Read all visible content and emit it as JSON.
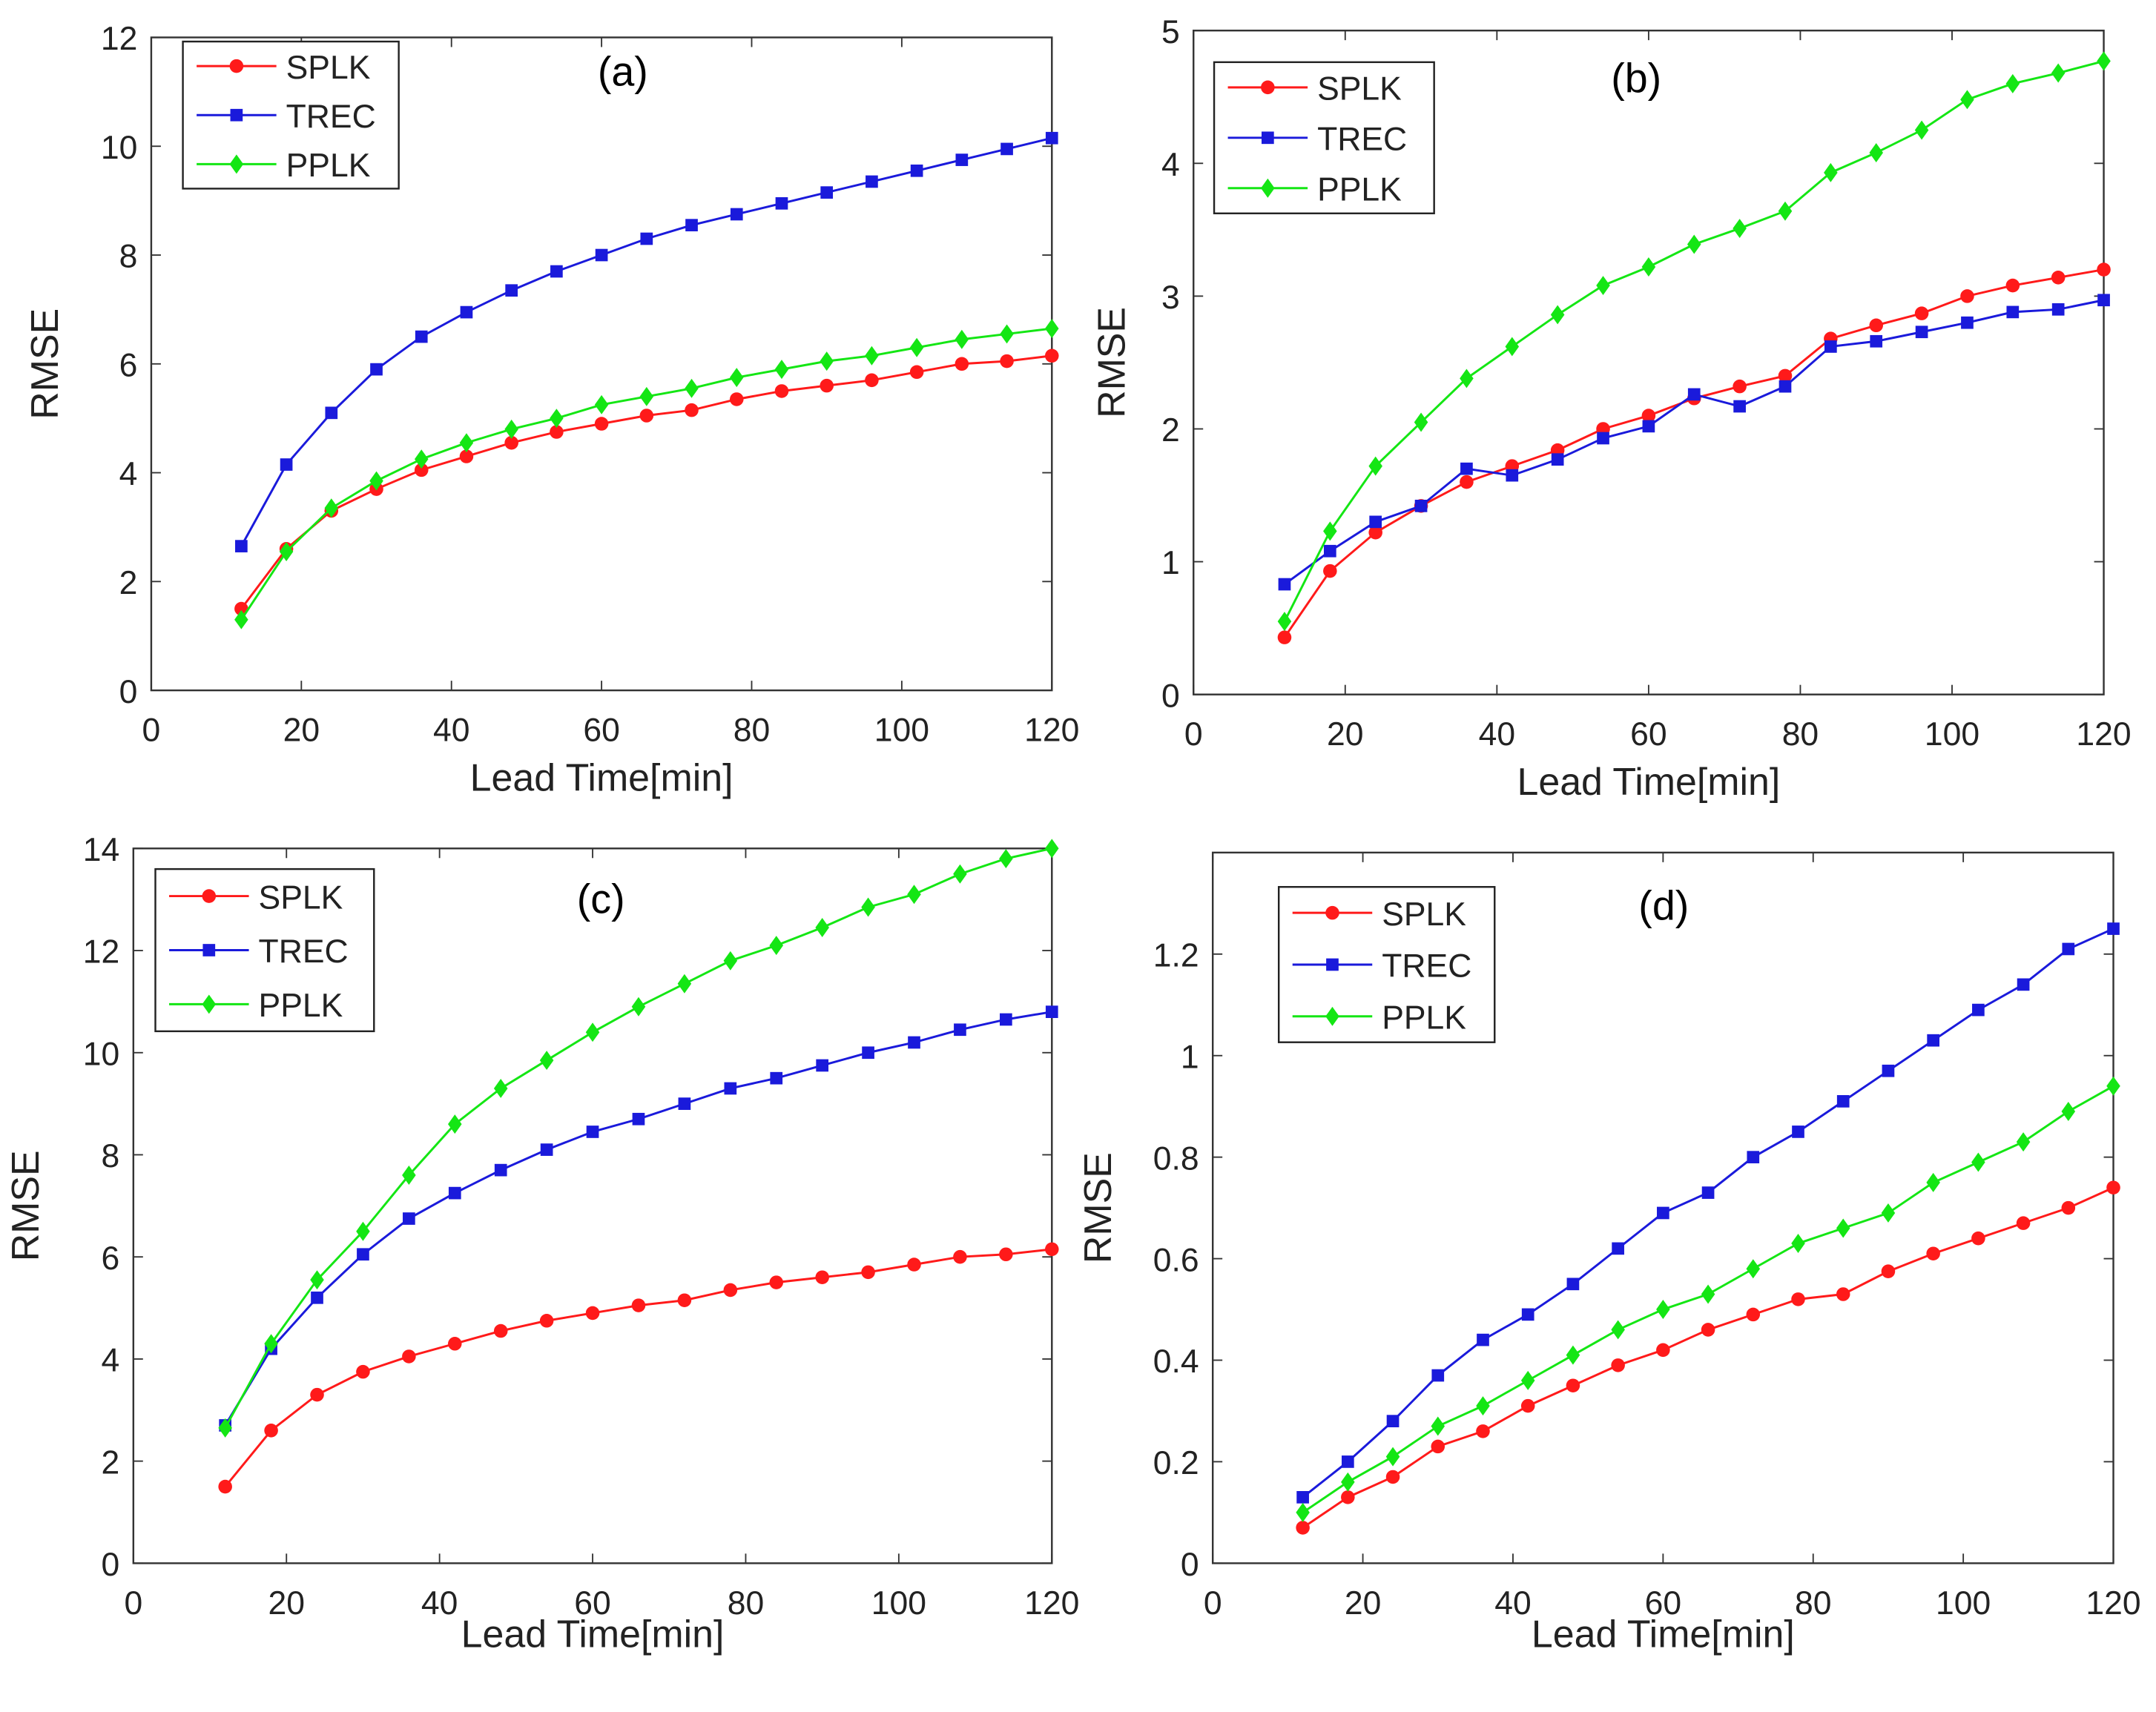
{
  "colors": {
    "SPLK": "#ff1a1a",
    "TREC": "#1a1adb",
    "PPLK": "#14e614",
    "axis": "#333333"
  },
  "chart_data": [
    {
      "type": "line",
      "title": "(a)",
      "xlabel": "Lead Time[min]",
      "ylabel": "RMSE",
      "xlim": [
        0,
        120
      ],
      "ylim": [
        0,
        12
      ],
      "xticks": [
        0,
        20,
        40,
        60,
        80,
        100,
        120
      ],
      "yticks": [
        0,
        2,
        4,
        6,
        8,
        10,
        12
      ],
      "yticklabels": [
        "0",
        "2",
        "4",
        "6",
        "8",
        "10",
        "12"
      ],
      "legend": "top-left",
      "x": [
        12,
        18,
        24,
        30,
        36,
        42,
        48,
        54,
        60,
        66,
        72,
        78,
        84,
        90,
        96,
        102,
        108,
        114,
        120
      ],
      "series": [
        {
          "name": "SPLK",
          "marker": "circle",
          "values": [
            1.5,
            2.6,
            3.3,
            3.7,
            4.05,
            4.3,
            4.55,
            4.75,
            4.9,
            5.05,
            5.15,
            5.35,
            5.5,
            5.6,
            5.7,
            5.85,
            6.0,
            6.05,
            6.15
          ]
        },
        {
          "name": "TREC",
          "marker": "square",
          "values": [
            2.65,
            4.15,
            5.1,
            5.9,
            6.5,
            6.95,
            7.35,
            7.7,
            8.0,
            8.3,
            8.55,
            8.75,
            8.95,
            9.15,
            9.35,
            9.55,
            9.75,
            9.95,
            10.15
          ]
        },
        {
          "name": "PPLK",
          "marker": "diamond",
          "values": [
            1.3,
            2.55,
            3.35,
            3.85,
            4.25,
            4.55,
            4.8,
            5.0,
            5.25,
            5.4,
            5.55,
            5.75,
            5.9,
            6.05,
            6.15,
            6.3,
            6.45,
            6.55,
            6.65
          ]
        }
      ]
    },
    {
      "type": "line",
      "title": "(b)",
      "xlabel": "Lead Time[min]",
      "ylabel": "RMSE",
      "xlim": [
        0,
        120
      ],
      "ylim": [
        0,
        5
      ],
      "xticks": [
        0,
        20,
        40,
        60,
        80,
        100,
        120
      ],
      "yticks": [
        0,
        1,
        2,
        3,
        4,
        5
      ],
      "yticklabels": [
        "0",
        "1",
        "2",
        "3",
        "4",
        "5"
      ],
      "legend": "top-left",
      "x": [
        12,
        18,
        24,
        30,
        36,
        42,
        48,
        54,
        60,
        66,
        72,
        78,
        84,
        90,
        96,
        102,
        108,
        114,
        120
      ],
      "series": [
        {
          "name": "SPLK",
          "marker": "circle",
          "values": [
            0.43,
            0.93,
            1.22,
            1.42,
            1.6,
            1.72,
            1.84,
            2.0,
            2.1,
            2.23,
            2.32,
            2.4,
            2.68,
            2.78,
            2.87,
            3.0,
            3.08,
            3.14,
            3.2
          ]
        },
        {
          "name": "TREC",
          "marker": "square",
          "values": [
            0.83,
            1.08,
            1.3,
            1.42,
            1.7,
            1.65,
            1.77,
            1.93,
            2.02,
            2.26,
            2.17,
            2.32,
            2.62,
            2.66,
            2.73,
            2.8,
            2.88,
            2.9,
            2.97
          ]
        },
        {
          "name": "PPLK",
          "marker": "diamond",
          "values": [
            0.55,
            1.23,
            1.72,
            2.05,
            2.38,
            2.62,
            2.86,
            3.08,
            3.22,
            3.39,
            3.51,
            3.64,
            3.93,
            4.08,
            4.25,
            4.48,
            4.6,
            4.68,
            4.77
          ]
        }
      ]
    },
    {
      "type": "line",
      "title": "(c)",
      "xlabel": "Lead Time[min]",
      "ylabel": "RMSE",
      "xlim": [
        0,
        120
      ],
      "ylim": [
        0,
        14
      ],
      "xticks": [
        0,
        20,
        40,
        60,
        80,
        100,
        120
      ],
      "yticks": [
        0,
        2,
        4,
        6,
        8,
        10,
        12,
        14
      ],
      "yticklabels": [
        "0",
        "2",
        "4",
        "6",
        "8",
        "10",
        "12",
        "14"
      ],
      "legend": "top-left",
      "x": [
        12,
        18,
        24,
        30,
        36,
        42,
        48,
        54,
        60,
        66,
        72,
        78,
        84,
        90,
        96,
        102,
        108,
        114,
        120
      ],
      "series": [
        {
          "name": "SPLK",
          "marker": "circle",
          "values": [
            1.5,
            2.6,
            3.3,
            3.75,
            4.05,
            4.3,
            4.55,
            4.75,
            4.9,
            5.05,
            5.15,
            5.35,
            5.5,
            5.6,
            5.7,
            5.85,
            6.0,
            6.05,
            6.15
          ]
        },
        {
          "name": "TREC",
          "marker": "square",
          "values": [
            2.7,
            4.2,
            5.2,
            6.05,
            6.75,
            7.25,
            7.7,
            8.1,
            8.45,
            8.7,
            9.0,
            9.3,
            9.5,
            9.75,
            10.0,
            10.2,
            10.45,
            10.65,
            10.8
          ]
        },
        {
          "name": "PPLK",
          "marker": "diamond",
          "values": [
            2.65,
            4.3,
            5.55,
            6.5,
            7.6,
            8.6,
            9.3,
            9.85,
            10.4,
            10.9,
            11.35,
            11.8,
            12.1,
            12.45,
            12.85,
            13.1,
            13.5,
            13.8,
            14.0
          ]
        }
      ]
    },
    {
      "type": "line",
      "title": "(d)",
      "xlabel": "Lead Time[min]",
      "ylabel": "RMSE",
      "xlim": [
        0,
        120
      ],
      "ylim": [
        0,
        1.4
      ],
      "xticks": [
        0,
        20,
        40,
        60,
        80,
        100,
        120
      ],
      "yticks": [
        0,
        0.2,
        0.4,
        0.6,
        0.8,
        1,
        1.2
      ],
      "yticklabels": [
        "0",
        "0.2",
        "0.4",
        "0.6",
        "0.8",
        "1",
        "1.2"
      ],
      "legend": "top-left",
      "x": [
        12,
        18,
        24,
        30,
        36,
        42,
        48,
        54,
        60,
        66,
        72,
        78,
        84,
        90,
        96,
        102,
        108,
        114,
        120
      ],
      "series": [
        {
          "name": "SPLK",
          "marker": "circle",
          "values": [
            0.07,
            0.13,
            0.17,
            0.23,
            0.26,
            0.31,
            0.35,
            0.39,
            0.42,
            0.46,
            0.49,
            0.52,
            0.53,
            0.575,
            0.61,
            0.64,
            0.67,
            0.7,
            0.74
          ]
        },
        {
          "name": "TREC",
          "marker": "square",
          "values": [
            0.13,
            0.2,
            0.28,
            0.37,
            0.44,
            0.49,
            0.55,
            0.62,
            0.69,
            0.73,
            0.8,
            0.85,
            0.91,
            0.97,
            1.03,
            1.09,
            1.14,
            1.21,
            1.25
          ]
        },
        {
          "name": "PPLK",
          "marker": "diamond",
          "values": [
            0.1,
            0.16,
            0.21,
            0.27,
            0.31,
            0.36,
            0.41,
            0.46,
            0.5,
            0.53,
            0.58,
            0.63,
            0.66,
            0.69,
            0.75,
            0.79,
            0.83,
            0.89,
            0.94
          ]
        }
      ]
    }
  ]
}
